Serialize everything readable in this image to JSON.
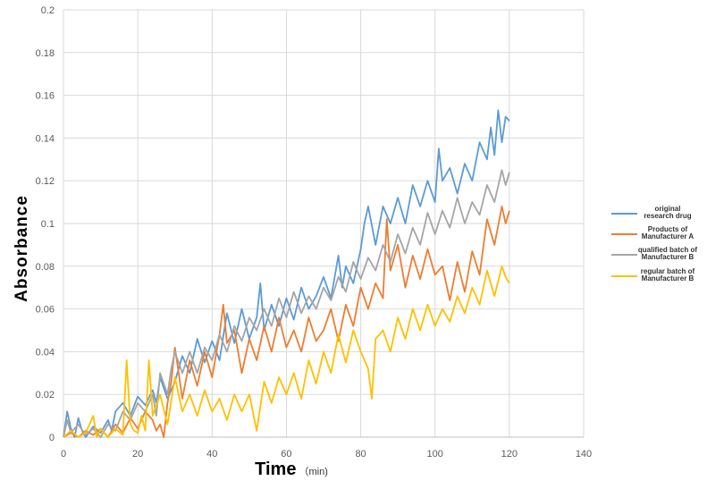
{
  "chart_data": {
    "type": "line",
    "title": "",
    "xlabel": "Time",
    "xunit": "（min)",
    "ylabel": "Absorbance",
    "xlim": [
      0,
      140
    ],
    "ylim": [
      0,
      0.2
    ],
    "xticks": [
      0,
      20,
      40,
      60,
      80,
      100,
      120,
      140
    ],
    "xtick_labels": [
      "0",
      "20",
      "40",
      "60",
      "80",
      "100",
      "120",
      "140"
    ],
    "yticks": [
      0,
      0.02,
      0.04,
      0.06,
      0.08,
      0.1,
      0.12,
      0.14,
      0.16,
      0.18,
      0.2
    ],
    "ytick_labels": [
      "0",
      "0.02",
      "0.04",
      "0.06",
      "0.08",
      "0.1",
      "0.12",
      "0.14",
      "0.16",
      "0.18",
      "0.2"
    ],
    "grid": true,
    "legend_position": "right",
    "series": [
      {
        "name": "original research drug",
        "color": "#5B9BD5",
        "points": [
          [
            0,
            0.0
          ],
          [
            1,
            0.012
          ],
          [
            2,
            0.004
          ],
          [
            3,
            0.0
          ],
          [
            4,
            0.009
          ],
          [
            5,
            0.003
          ],
          [
            6,
            0.0
          ],
          [
            8,
            0.005
          ],
          [
            10,
            0.002
          ],
          [
            12,
            0.008
          ],
          [
            13,
            0.003
          ],
          [
            14,
            0.012
          ],
          [
            16,
            0.016
          ],
          [
            18,
            0.01
          ],
          [
            20,
            0.019
          ],
          [
            22,
            0.015
          ],
          [
            24,
            0.022
          ],
          [
            25,
            0.016
          ],
          [
            26,
            0.028
          ],
          [
            28,
            0.018
          ],
          [
            30,
            0.026
          ],
          [
            32,
            0.038
          ],
          [
            34,
            0.03
          ],
          [
            36,
            0.046
          ],
          [
            38,
            0.035
          ],
          [
            40,
            0.045
          ],
          [
            42,
            0.036
          ],
          [
            44,
            0.058
          ],
          [
            46,
            0.044
          ],
          [
            48,
            0.06
          ],
          [
            50,
            0.046
          ],
          [
            52,
            0.056
          ],
          [
            53,
            0.072
          ],
          [
            54,
            0.05
          ],
          [
            56,
            0.062
          ],
          [
            58,
            0.052
          ],
          [
            60,
            0.065
          ],
          [
            62,
            0.055
          ],
          [
            64,
            0.07
          ],
          [
            66,
            0.06
          ],
          [
            68,
            0.066
          ],
          [
            70,
            0.075
          ],
          [
            72,
            0.065
          ],
          [
            74,
            0.085
          ],
          [
            75,
            0.07
          ],
          [
            76,
            0.08
          ],
          [
            78,
            0.072
          ],
          [
            80,
            0.088
          ],
          [
            81,
            0.1
          ],
          [
            82,
            0.108
          ],
          [
            84,
            0.09
          ],
          [
            86,
            0.108
          ],
          [
            88,
            0.1
          ],
          [
            90,
            0.112
          ],
          [
            92,
            0.1
          ],
          [
            94,
            0.118
          ],
          [
            96,
            0.108
          ],
          [
            98,
            0.12
          ],
          [
            100,
            0.11
          ],
          [
            101,
            0.135
          ],
          [
            102,
            0.12
          ],
          [
            104,
            0.126
          ],
          [
            106,
            0.114
          ],
          [
            108,
            0.128
          ],
          [
            110,
            0.12
          ],
          [
            112,
            0.138
          ],
          [
            114,
            0.13
          ],
          [
            115,
            0.145
          ],
          [
            116,
            0.132
          ],
          [
            117,
            0.153
          ],
          [
            118,
            0.138
          ],
          [
            119,
            0.15
          ],
          [
            120,
            0.148
          ]
        ]
      },
      {
        "name": "Products of Manufacturer A",
        "color": "#ED7D31",
        "points": [
          [
            0,
            0.0
          ],
          [
            2,
            0.002
          ],
          [
            4,
            0.0
          ],
          [
            6,
            0.003
          ],
          [
            8,
            0.001
          ],
          [
            10,
            0.004
          ],
          [
            12,
            0.0
          ],
          [
            14,
            0.006
          ],
          [
            16,
            0.002
          ],
          [
            18,
            0.009
          ],
          [
            20,
            0.004
          ],
          [
            22,
            0.012
          ],
          [
            24,
            0.008
          ],
          [
            25,
            0.003
          ],
          [
            26,
            0.006
          ],
          [
            27,
            0.0
          ],
          [
            28,
            0.016
          ],
          [
            29,
            0.026
          ],
          [
            30,
            0.042
          ],
          [
            31,
            0.03
          ],
          [
            32,
            0.018
          ],
          [
            34,
            0.036
          ],
          [
            36,
            0.024
          ],
          [
            38,
            0.04
          ],
          [
            40,
            0.028
          ],
          [
            42,
            0.048
          ],
          [
            43,
            0.062
          ],
          [
            44,
            0.044
          ],
          [
            46,
            0.05
          ],
          [
            48,
            0.03
          ],
          [
            50,
            0.046
          ],
          [
            52,
            0.036
          ],
          [
            54,
            0.052
          ],
          [
            56,
            0.04
          ],
          [
            58,
            0.056
          ],
          [
            60,
            0.042
          ],
          [
            62,
            0.05
          ],
          [
            64,
            0.04
          ],
          [
            66,
            0.056
          ],
          [
            68,
            0.045
          ],
          [
            70,
            0.05
          ],
          [
            72,
            0.06
          ],
          [
            74,
            0.045
          ],
          [
            76,
            0.062
          ],
          [
            78,
            0.052
          ],
          [
            80,
            0.07
          ],
          [
            82,
            0.06
          ],
          [
            84,
            0.072
          ],
          [
            86,
            0.065
          ],
          [
            87,
            0.102
          ],
          [
            88,
            0.078
          ],
          [
            90,
            0.09
          ],
          [
            92,
            0.07
          ],
          [
            94,
            0.085
          ],
          [
            96,
            0.074
          ],
          [
            98,
            0.088
          ],
          [
            100,
            0.076
          ],
          [
            102,
            0.08
          ],
          [
            104,
            0.064
          ],
          [
            106,
            0.082
          ],
          [
            108,
            0.068
          ],
          [
            110,
            0.087
          ],
          [
            112,
            0.076
          ],
          [
            114,
            0.102
          ],
          [
            116,
            0.09
          ],
          [
            118,
            0.108
          ],
          [
            119,
            0.1
          ],
          [
            120,
            0.106
          ]
        ]
      },
      {
        "name": "qualified batch of Manufacturer B",
        "color": "#A5A5A5",
        "points": [
          [
            0,
            0.0
          ],
          [
            1,
            0.008
          ],
          [
            2,
            0.002
          ],
          [
            4,
            0.006
          ],
          [
            6,
            0.001
          ],
          [
            8,
            0.004
          ],
          [
            10,
            0.0
          ],
          [
            12,
            0.006
          ],
          [
            14,
            0.003
          ],
          [
            16,
            0.012
          ],
          [
            18,
            0.008
          ],
          [
            20,
            0.016
          ],
          [
            22,
            0.012
          ],
          [
            24,
            0.02
          ],
          [
            25,
            0.01
          ],
          [
            26,
            0.03
          ],
          [
            28,
            0.02
          ],
          [
            29,
            0.032
          ],
          [
            30,
            0.04
          ],
          [
            32,
            0.03
          ],
          [
            34,
            0.04
          ],
          [
            36,
            0.03
          ],
          [
            38,
            0.042
          ],
          [
            40,
            0.036
          ],
          [
            42,
            0.048
          ],
          [
            44,
            0.04
          ],
          [
            46,
            0.052
          ],
          [
            48,
            0.045
          ],
          [
            50,
            0.056
          ],
          [
            52,
            0.05
          ],
          [
            54,
            0.06
          ],
          [
            56,
            0.052
          ],
          [
            58,
            0.065
          ],
          [
            60,
            0.056
          ],
          [
            62,
            0.068
          ],
          [
            64,
            0.058
          ],
          [
            66,
            0.066
          ],
          [
            68,
            0.06
          ],
          [
            70,
            0.07
          ],
          [
            72,
            0.064
          ],
          [
            74,
            0.075
          ],
          [
            76,
            0.068
          ],
          [
            78,
            0.082
          ],
          [
            80,
            0.074
          ],
          [
            82,
            0.084
          ],
          [
            84,
            0.078
          ],
          [
            86,
            0.09
          ],
          [
            88,
            0.082
          ],
          [
            90,
            0.095
          ],
          [
            92,
            0.086
          ],
          [
            94,
            0.098
          ],
          [
            96,
            0.09
          ],
          [
            98,
            0.105
          ],
          [
            100,
            0.095
          ],
          [
            102,
            0.106
          ],
          [
            104,
            0.098
          ],
          [
            106,
            0.112
          ],
          [
            108,
            0.1
          ],
          [
            110,
            0.11
          ],
          [
            112,
            0.104
          ],
          [
            114,
            0.118
          ],
          [
            116,
            0.11
          ],
          [
            118,
            0.125
          ],
          [
            119,
            0.118
          ],
          [
            120,
            0.124
          ]
        ]
      },
      {
        "name": "regular batch of Manufacturer B",
        "color": "#FFC000",
        "points": [
          [
            0,
            0.0
          ],
          [
            2,
            0.003
          ],
          [
            4,
            0.0
          ],
          [
            6,
            0.002
          ],
          [
            8,
            0.01
          ],
          [
            9,
            0.0
          ],
          [
            10,
            0.004
          ],
          [
            12,
            0.0
          ],
          [
            14,
            0.004
          ],
          [
            16,
            0.001
          ],
          [
            17,
            0.036
          ],
          [
            18,
            0.006
          ],
          [
            19,
            0.003
          ],
          [
            20,
            0.002
          ],
          [
            21,
            0.01
          ],
          [
            22,
            0.003
          ],
          [
            23,
            0.036
          ],
          [
            24,
            0.01
          ],
          [
            26,
            0.02
          ],
          [
            28,
            0.006
          ],
          [
            30,
            0.028
          ],
          [
            32,
            0.012
          ],
          [
            34,
            0.02
          ],
          [
            36,
            0.01
          ],
          [
            38,
            0.022
          ],
          [
            40,
            0.012
          ],
          [
            42,
            0.018
          ],
          [
            44,
            0.008
          ],
          [
            46,
            0.02
          ],
          [
            48,
            0.012
          ],
          [
            50,
            0.02
          ],
          [
            52,
            0.003
          ],
          [
            54,
            0.026
          ],
          [
            56,
            0.016
          ],
          [
            58,
            0.028
          ],
          [
            60,
            0.02
          ],
          [
            62,
            0.03
          ],
          [
            64,
            0.018
          ],
          [
            66,
            0.036
          ],
          [
            68,
            0.025
          ],
          [
            70,
            0.04
          ],
          [
            72,
            0.03
          ],
          [
            74,
            0.048
          ],
          [
            76,
            0.035
          ],
          [
            78,
            0.05
          ],
          [
            80,
            0.04
          ],
          [
            82,
            0.032
          ],
          [
            83,
            0.018
          ],
          [
            84,
            0.046
          ],
          [
            86,
            0.05
          ],
          [
            88,
            0.04
          ],
          [
            90,
            0.056
          ],
          [
            92,
            0.046
          ],
          [
            94,
            0.06
          ],
          [
            96,
            0.05
          ],
          [
            98,
            0.062
          ],
          [
            100,
            0.052
          ],
          [
            102,
            0.06
          ],
          [
            104,
            0.054
          ],
          [
            106,
            0.066
          ],
          [
            108,
            0.058
          ],
          [
            110,
            0.07
          ],
          [
            112,
            0.062
          ],
          [
            114,
            0.078
          ],
          [
            116,
            0.066
          ],
          [
            118,
            0.08
          ],
          [
            119,
            0.075
          ],
          [
            120,
            0.072
          ]
        ]
      }
    ]
  },
  "legend": [
    {
      "line1": "original",
      "line2": "research drug"
    },
    {
      "line1": "Products of",
      "line2": "Manufacturer A"
    },
    {
      "line1": "qualified batch of",
      "line2": "Manufacturer B"
    },
    {
      "line1": "regular batch of",
      "line2": "Manufacturer B"
    }
  ]
}
